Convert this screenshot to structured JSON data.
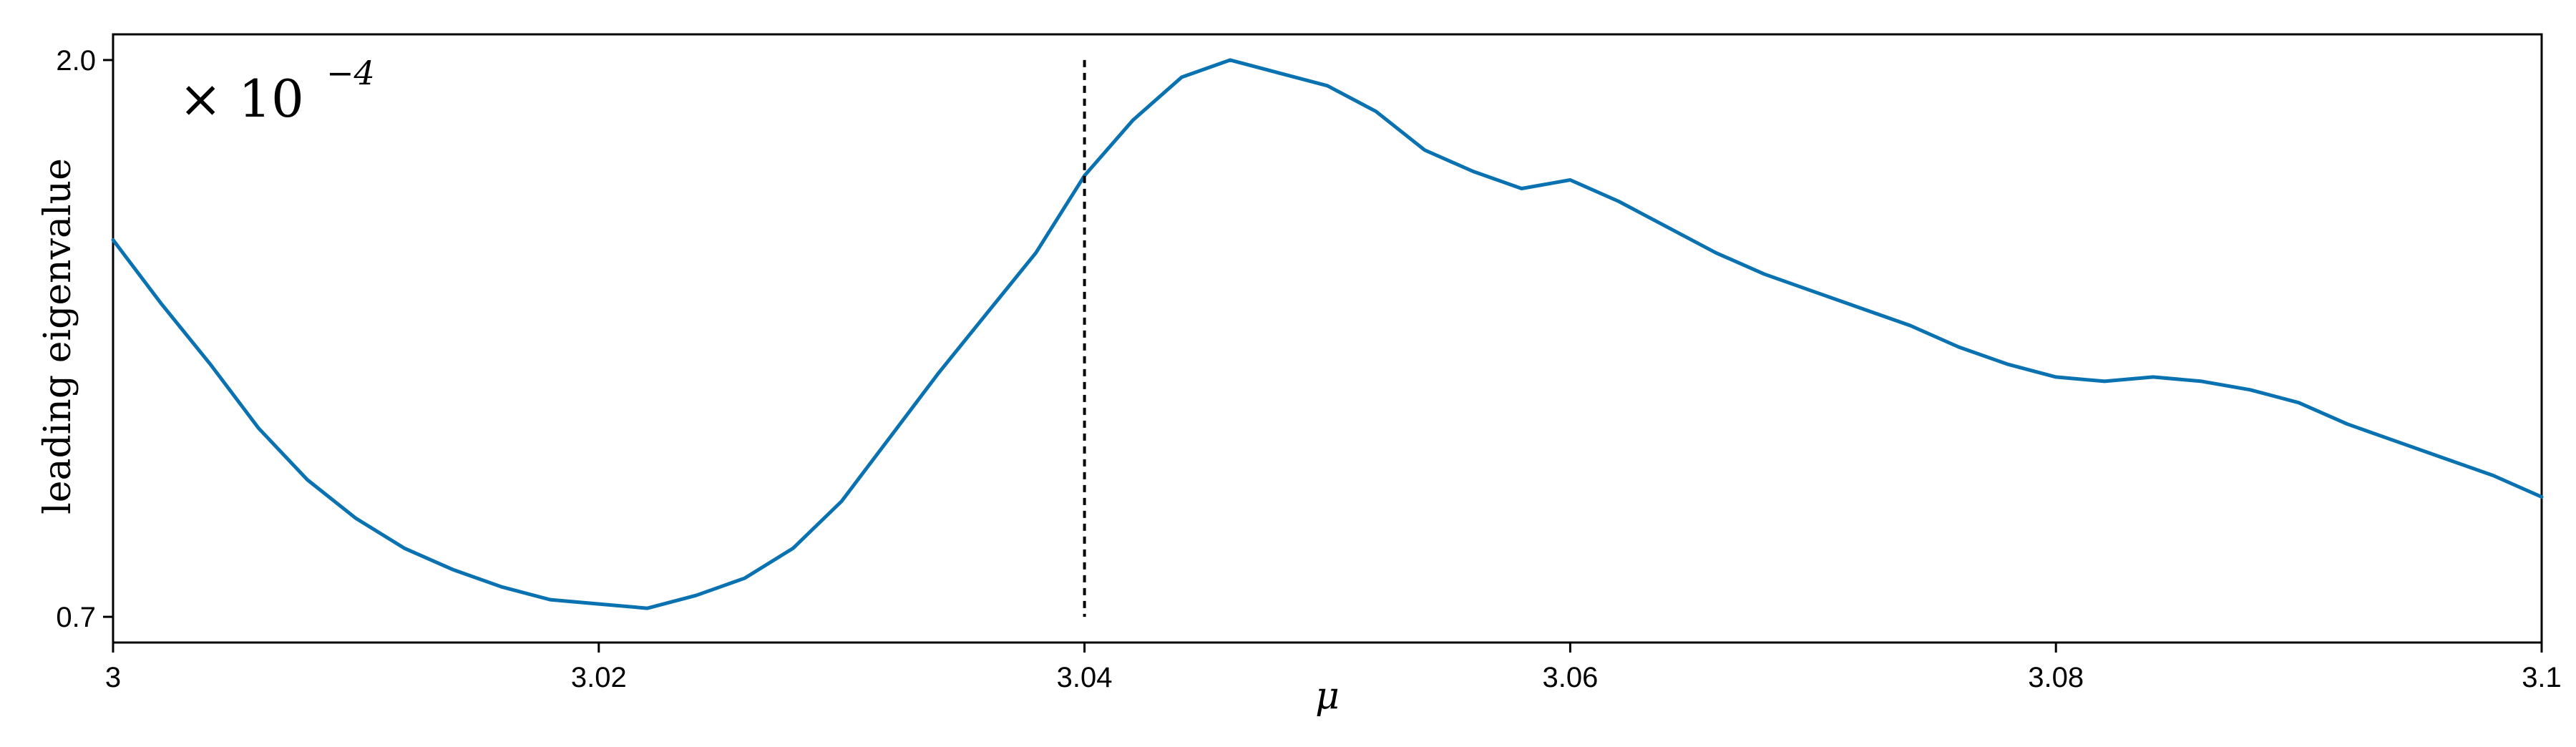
{
  "chart_data": {
    "type": "line",
    "title": "",
    "xlabel": "μ",
    "ylabel": "leading eigenvalue",
    "xlim": [
      3.0,
      3.1
    ],
    "ylim": [
      0.64,
      2.06
    ],
    "x_ticks": [
      3.0,
      3.02,
      3.04,
      3.06,
      3.08,
      3.1
    ],
    "x_tick_labels": [
      "3",
      "3.02",
      "3.04",
      "3.06",
      "3.08",
      "3.1"
    ],
    "y_ticks": [
      0.7,
      2.0
    ],
    "y_tick_labels": [
      "0.7",
      "2.0"
    ],
    "scale_annotation": {
      "prefix": "× 10",
      "exponent": "−4"
    },
    "reference_line": {
      "x": 3.04,
      "y_range": [
        0.7,
        2.0
      ],
      "style": "dashed"
    },
    "grid": false,
    "legend": "none",
    "colors": {
      "series": "#0a72b0",
      "axis": "#000000",
      "reference": "#000000"
    },
    "series": [
      {
        "x": [
          3.0,
          3.002,
          3.004,
          3.006,
          3.008,
          3.01,
          3.012,
          3.014,
          3.016,
          3.018,
          3.02,
          3.022,
          3.024,
          3.026,
          3.028,
          3.03,
          3.032,
          3.034,
          3.036,
          3.038,
          3.04,
          3.042,
          3.044,
          3.046,
          3.048,
          3.05,
          3.052,
          3.054,
          3.056,
          3.058,
          3.06,
          3.062,
          3.064,
          3.066,
          3.068,
          3.07,
          3.072,
          3.074,
          3.076,
          3.078,
          3.08,
          3.082,
          3.084,
          3.086,
          3.088,
          3.09,
          3.092,
          3.094,
          3.096,
          3.098,
          3.1
        ],
        "y": [
          1.58,
          1.43,
          1.29,
          1.14,
          1.02,
          0.93,
          0.86,
          0.81,
          0.77,
          0.74,
          0.73,
          0.72,
          0.75,
          0.79,
          0.86,
          0.97,
          1.12,
          1.27,
          1.41,
          1.55,
          1.73,
          1.86,
          1.96,
          2.0,
          1.97,
          1.94,
          1.88,
          1.79,
          1.74,
          1.7,
          1.72,
          1.67,
          1.61,
          1.55,
          1.5,
          1.46,
          1.42,
          1.38,
          1.33,
          1.29,
          1.26,
          1.25,
          1.26,
          1.25,
          1.23,
          1.2,
          1.15,
          1.11,
          1.07,
          1.03,
          0.98
        ]
      }
    ]
  }
}
